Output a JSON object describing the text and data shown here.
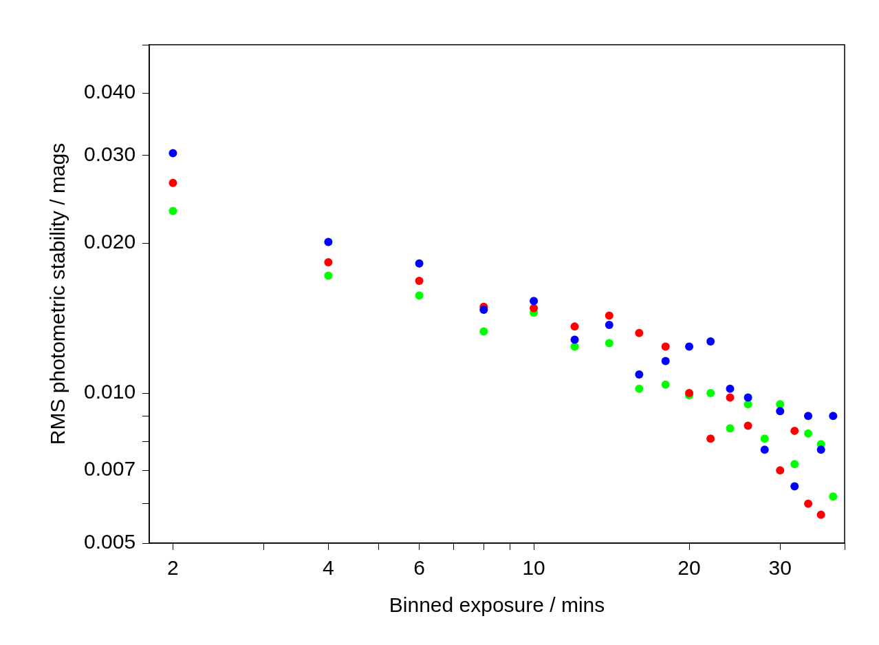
{
  "chart_data": {
    "type": "scatter",
    "xlabel": "Binned exposure / mins",
    "ylabel": "RMS photometric stability / mags",
    "log": "xy",
    "grid": false,
    "legend": false,
    "marker": "circle",
    "xlim": [
      1.8,
      40
    ],
    "ylim": [
      0.005,
      0.05
    ],
    "xticks": [
      2,
      {
        "value": 3,
        "label": null
      },
      4,
      {
        "value": 5,
        "label": null
      },
      6,
      {
        "value": 7,
        "label": null
      },
      {
        "value": 8,
        "label": null
      },
      {
        "value": 9,
        "label": null
      },
      10,
      20,
      30,
      {
        "value": 40,
        "label": null
      }
    ],
    "yticks": [
      {
        "value": 0.005,
        "label": "0.005"
      },
      {
        "value": 0.006,
        "label": null
      },
      {
        "value": 0.007,
        "label": "0.007"
      },
      {
        "value": 0.008,
        "label": null
      },
      {
        "value": 0.009,
        "label": null
      },
      {
        "value": 0.01,
        "label": "0.010"
      },
      {
        "value": 0.02,
        "label": "0.020"
      },
      {
        "value": 0.03,
        "label": "0.030"
      },
      {
        "value": 0.04,
        "label": "0.040"
      },
      {
        "value": 0.05,
        "label": null
      }
    ],
    "series": [
      {
        "color": "#0000ff",
        "x": [
          2,
          4,
          6,
          8,
          10,
          12,
          14,
          16,
          18,
          20,
          22,
          24,
          26,
          28,
          30,
          32,
          34,
          36,
          38
        ],
        "values": [
          0.0303,
          0.0201,
          0.0182,
          0.0147,
          0.0153,
          0.0128,
          0.0137,
          0.0109,
          0.0116,
          0.0124,
          0.0127,
          0.0102,
          0.0098,
          0.0077,
          0.0092,
          0.0065,
          0.009,
          0.0077,
          0.009
        ]
      },
      {
        "color": "#ff0000",
        "x": [
          2,
          4,
          6,
          8,
          10,
          12,
          14,
          16,
          18,
          20,
          22,
          24,
          26,
          28,
          30,
          32,
          34,
          36
        ],
        "values": [
          0.0264,
          0.0183,
          0.0168,
          0.0149,
          0.0148,
          0.0136,
          0.0143,
          0.0132,
          0.0124,
          0.01,
          0.0081,
          0.0098,
          0.0086,
          null,
          0.007,
          0.0084,
          0.006,
          0.0057
        ]
      },
      {
        "color": "#00ff00",
        "x": [
          2,
          4,
          6,
          8,
          10,
          12,
          14,
          16,
          18,
          20,
          22,
          24,
          26,
          28,
          30,
          32,
          34,
          36,
          38
        ],
        "values": [
          0.0232,
          0.0172,
          0.0157,
          0.0133,
          0.0145,
          0.0124,
          0.0126,
          0.0102,
          0.0104,
          0.0099,
          0.01,
          0.0085,
          0.0095,
          0.0081,
          0.0095,
          0.0072,
          0.0083,
          0.0079,
          0.0062
        ]
      }
    ]
  }
}
